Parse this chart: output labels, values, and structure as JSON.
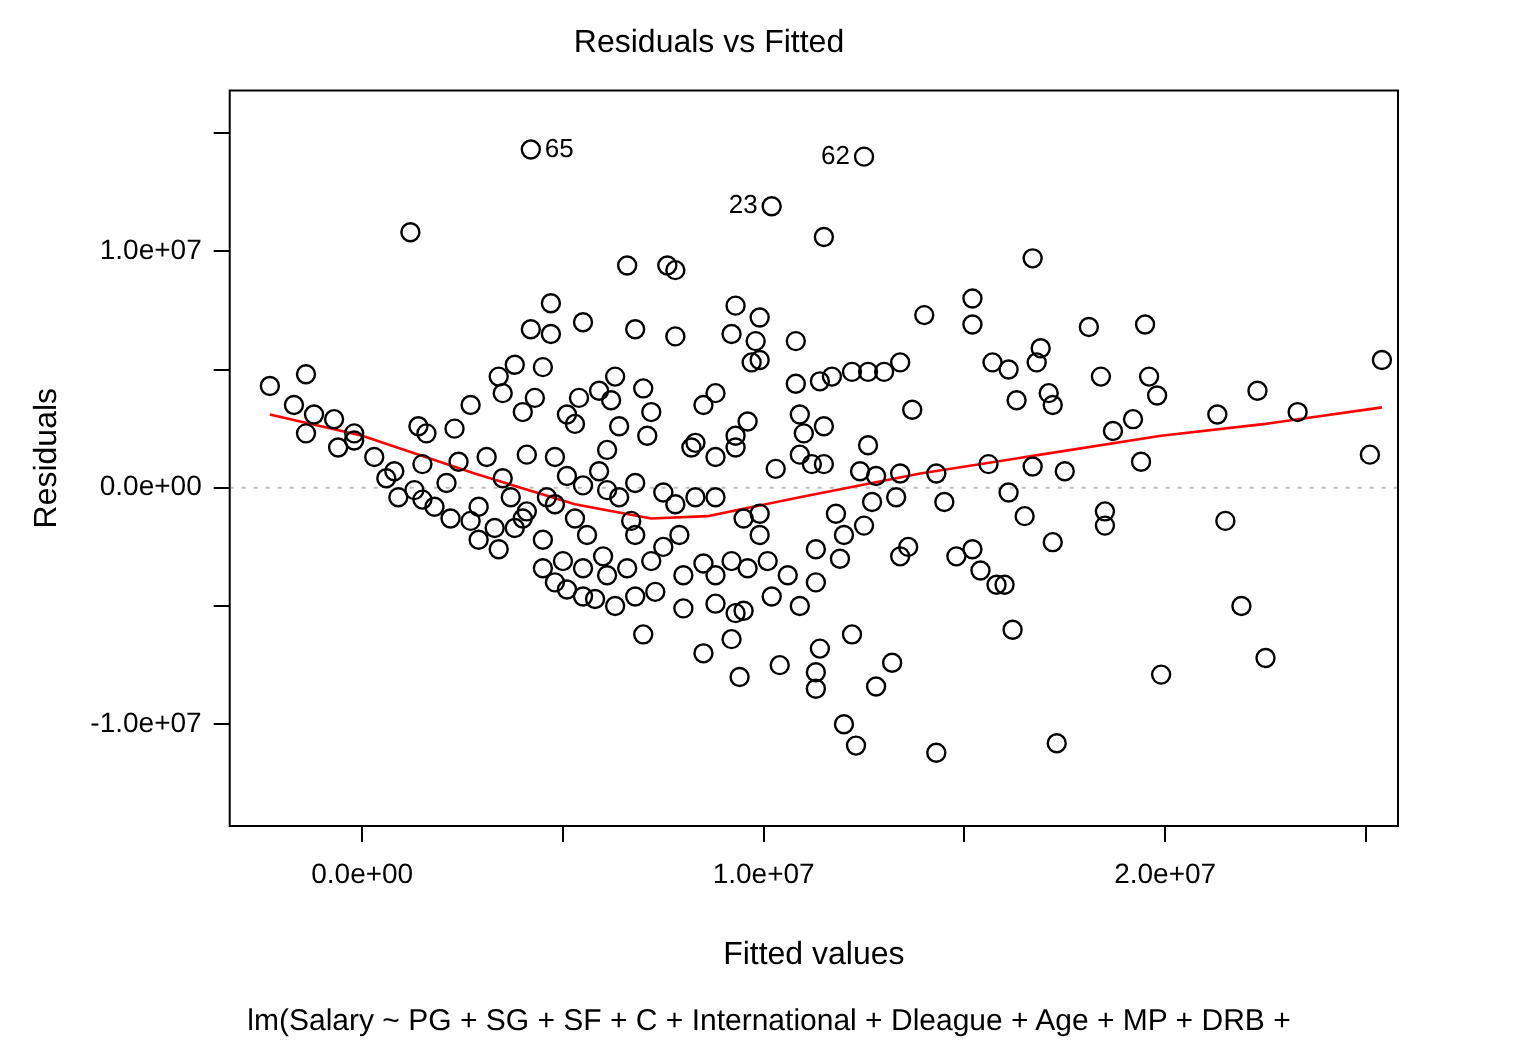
{
  "chart_data": {
    "type": "scatter",
    "title": "Residuals vs Fitted",
    "xlabel": "Fitted values",
    "ylabel": "Residuals",
    "annotations": [
      {
        "text": "65",
        "x": 4200000.0,
        "y": 14300000.0
      },
      {
        "text": "23",
        "x": 10200000.0,
        "y": 11900000.0
      },
      {
        "text": "62",
        "x": 12500000.0,
        "y": 14000000.0
      },
      "lm(Salary ~ PG + SG + SF + C + International + Dleague + Age + MP + DRB +"
    ],
    "xlim": [
      -3300000.0,
      25800000.0
    ],
    "ylim": [
      -14300000.0,
      16800000.0
    ],
    "xticks": [
      {
        "value": 0,
        "label": "0.0e+00"
      },
      {
        "value": 5000000.0,
        "label": null
      },
      {
        "value": 10000000.0,
        "label": "1.0e+07"
      },
      {
        "value": 15000000.0,
        "label": null
      },
      {
        "value": 20000000.0,
        "label": "2.0e+07"
      },
      {
        "value": 25000000.0,
        "label": null
      }
    ],
    "yticks": [
      {
        "value": -10000000.0,
        "label": "-1.0e+07"
      },
      {
        "value": -5000000.0,
        "label": null
      },
      {
        "value": 0,
        "label": "0.0e+00"
      },
      {
        "value": 5000000.0,
        "label": null
      },
      {
        "value": 10000000.0,
        "label": "1.0e+07"
      },
      {
        "value": 15000000.0,
        "label": null
      }
    ],
    "grid": false,
    "legend": false,
    "ref_lines": [
      {
        "axis": "y",
        "value": 0,
        "color": "#bebebe",
        "line_style": "dotted"
      }
    ],
    "series": [
      {
        "color": "#000000",
        "marker": "circle",
        "x": [
          4200000.0,
          10200000.0,
          12500000.0,
          1200000.0,
          6600000.0,
          7600000.0,
          7800000.0,
          4700000.0,
          4200000.0,
          4700000.0,
          5500000.0,
          6800000.0,
          7800000.0,
          9300000.0,
          9900000.0,
          9200000.0,
          9800000.0,
          9700000.0,
          9900000.0,
          10800000.0,
          -2300000.0,
          -1400000.0,
          -1700000.0,
          -1200000.0,
          -700000.0,
          -200000.0,
          3800000.0,
          3400000.0,
          4500000.0,
          3500000.0,
          4300000.0,
          4000000.0,
          2700000.0,
          2300000.0,
          1400000.0,
          1600000.0,
          5400000.0,
          5900000.0,
          6300000.0,
          7000000.0,
          6200000.0,
          7200000.0,
          5100000.0,
          5300000.0,
          6400000.0,
          7100000.0,
          8800000.0,
          8500000.0,
          9600000.0,
          9300000.0,
          8300000.0,
          10800000.0,
          10900000.0,
          11000000.0,
          11500000.0,
          16700000.0,
          14000000.0,
          15200000.0,
          15200000.0,
          18100000.0,
          19500000.0,
          11400000.0,
          11700000.0,
          12200000.0,
          12600000.0,
          13000000.0,
          13400000.0,
          15700000.0,
          16100000.0,
          16800000.0,
          16900000.0,
          18400000.0,
          19600000.0,
          19800000.0,
          17100000.0,
          17200000.0,
          16300000.0,
          13700000.0,
          11500000.0,
          12600000.0,
          18700000.0,
          19200000.0,
          21300000.0,
          22300000.0,
          23300000.0,
          25400000.0,
          25100000.0,
          12400000.0,
          11200000.0,
          11500000.0,
          12800000.0,
          13400000.0,
          14300000.0,
          15600000.0,
          16700000.0,
          17500000.0,
          19400000.0,
          14500000.0,
          13300000.0,
          12700000.0,
          16100000.0,
          16500000.0,
          18500000.0,
          18500000.0,
          21500000.0,
          11800000.0,
          12000000.0,
          12500000.0,
          11300000.0,
          11900000.0,
          13400000.0,
          13600000.0,
          14800000.0,
          15200000.0,
          15400000.0,
          17200000.0,
          15800000.0,
          16000000.0,
          11300000.0,
          10900000.0,
          16200000.0,
          21900000.0,
          12200000.0,
          11400000.0,
          11300000.0,
          11300000.0,
          13200000.0,
          12800000.0,
          22500000.0,
          19900000.0,
          12000000.0,
          12300000.0,
          14300000.0,
          17300000.0,
          -1400000.0,
          -600000.0,
          -200000.0,
          300000.0,
          600000.0,
          800000.0,
          1300000.0,
          1500000.0,
          1800000.0,
          2200000.0,
          1500000.0,
          2400000.0,
          3100000.0,
          2700000.0,
          2900000.0,
          3400000.0,
          3800000.0,
          4100000.0,
          3700000.0,
          3500000.0,
          4100000.0,
          4800000.0,
          5100000.0,
          4600000.0,
          4500000.0,
          4500000.0,
          5000000.0,
          4800000.0,
          5100000.0,
          5500000.0,
          5800000.0,
          5500000.0,
          6000000.0,
          6300000.0,
          6100000.0,
          6600000.0,
          6800000.0,
          7000000.0,
          7300000.0,
          7200000.0,
          7500000.0,
          6800000.0,
          6700000.0,
          6400000.0,
          6800000.0,
          5900000.0,
          6100000.0,
          5500000.0,
          5300000.0,
          5600000.0,
          7800000.0,
          8300000.0,
          8800000.0,
          7900000.0,
          8000000.0,
          8000000.0,
          8500000.0,
          8800000.0,
          9200000.0,
          9600000.0,
          10100000.0,
          10600000.0,
          8800000.0,
          9300000.0,
          9500000.0,
          9200000.0,
          8500000.0,
          9400000.0,
          10400000.0,
          10200000.0,
          9900000.0,
          9500000.0,
          9900000.0,
          10300000.0,
          8200000.0,
          8800000.0,
          9300000.0,
          10900000.0,
          7500000.0,
          6100000.0,
          4800000.0,
          4000000.0,
          3300000.0,
          2900000.0,
          2100000.0,
          900000.0
        ],
        "values": [
          14300000.0,
          11900000.0,
          14000000.0,
          10800000.0,
          9400000.0,
          9400000.0,
          9200000.0,
          7800000.0,
          6700000.0,
          6500000.0,
          7000000.0,
          6700000.0,
          6400000.0,
          7700000.0,
          7200000.0,
          6500000.0,
          6200000.0,
          5300000.0,
          5400000.0,
          6200000.0,
          4300000.0,
          4800000.0,
          3500000.0,
          3100000.0,
          2900000.0,
          2300000.0,
          5200000.0,
          4700000.0,
          5100000.0,
          4000000.0,
          3800000.0,
          3200000.0,
          3500000.0,
          2500000.0,
          2600000.0,
          2300000.0,
          3800000.0,
          4100000.0,
          4700000.0,
          4200000.0,
          3700000.0,
          3200000.0,
          3100000.0,
          2700000.0,
          2600000.0,
          2200000.0,
          4000000.0,
          3500000.0,
          2800000.0,
          2200000.0,
          1900000.0,
          4400000.0,
          3100000.0,
          2300000.0,
          10600000.0,
          9700000.0,
          7300000.0,
          8000000.0,
          6900000.0,
          6800000.0,
          6900000.0,
          4500000.0,
          4700000.0,
          4900000.0,
          4900000.0,
          4900000.0,
          5300000.0,
          5300000.0,
          5000000.0,
          5300000.0,
          5900000.0,
          4700000.0,
          4700000.0,
          3900000.0,
          4000000.0,
          3500000.0,
          3700000.0,
          3300000.0,
          2600000.0,
          1800000.0,
          2400000.0,
          2900000.0,
          3100000.0,
          4100000.0,
          3200000.0,
          5400000.0,
          1400000.0,
          700000.0,
          1000000.0,
          1000000.0,
          500000.0,
          600000.0,
          600000.0,
          1000000.0,
          900000.0,
          700000.0,
          1100000.0,
          -600000.0,
          -400000.0,
          -600000.0,
          -200000.0,
          -1200000.0,
          -1000000.0,
          -1600000.0,
          -1400000.0,
          -1100000.0,
          -2000000.0,
          -1600000.0,
          -2600000.0,
          -3000000.0,
          -2900000.0,
          -2500000.0,
          -2900000.0,
          -2600000.0,
          -3500000.0,
          -2300000.0,
          -4100000.0,
          -4100000.0,
          -4000000.0,
          -5000000.0,
          -6000000.0,
          -5000000.0,
          -6200000.0,
          -6800000.0,
          -7800000.0,
          -8500000.0,
          -7400000.0,
          -8400000.0,
          -7200000.0,
          -7900000.0,
          -10000000.0,
          -10900000.0,
          -11200000.0,
          -10800000.0,
          2300000.0,
          1700000.0,
          2000000.0,
          1300000.0,
          400000.0,
          700000.0,
          -100000.0,
          -500000.0,
          -800000.0,
          -1300000.0,
          1000000.0,
          1100000.0,
          1300000.0,
          -1400000.0,
          -2200000.0,
          -2600000.0,
          -1700000.0,
          -1000000.0,
          -400000.0,
          400000.0,
          1400000.0,
          1300000.0,
          500000.0,
          -400000.0,
          -2200000.0,
          -3400000.0,
          -3100000.0,
          -4000000.0,
          -4300000.0,
          -4600000.0,
          -4700000.0,
          -3400000.0,
          -2900000.0,
          -5000000.0,
          -3700000.0,
          -3400000.0,
          -4600000.0,
          -6200000.0,
          -4400000.0,
          -3100000.0,
          -2500000.0,
          -2000000.0,
          -1400000.0,
          -400000.0,
          200000.0,
          700000.0,
          1600000.0,
          100000.0,
          -1300000.0,
          -2000000.0,
          -700000.0,
          -400000.0,
          -400000.0,
          -2000000.0,
          -3700000.0,
          -5100000.0,
          -3200000.0,
          -3700000.0,
          -3100000.0,
          -3400000.0,
          -3100000.0,
          -3700000.0,
          -4900000.0,
          -5300000.0,
          -5200000.0,
          -6400000.0,
          -7000000.0,
          -8000000.0,
          -7500000.0,
          -4600000.0,
          -1100000.0,
          -1300000.0,
          -2000000.0,
          800000.0,
          1700000.0,
          1300000.0,
          1700000.0,
          1400000.0,
          -200000.0,
          -100000.0,
          -700000.0,
          -1300000.0,
          -1700000.0,
          -800000.0,
          200000.0,
          -400000.0
        ]
      },
      {
        "type": "line",
        "color": "#ff0000",
        "line_style": "solid",
        "marker": "none",
        "x": [
          -2300000.0,
          0,
          2800000.0,
          5300000.0,
          7200000.0,
          8600000.0,
          10900000.0,
          13900000.0,
          16900000.0,
          19900000.0,
          22500000.0,
          25400000.0
        ],
        "values": [
          3100000.0,
          2200000.0,
          600000.0,
          -700000.0,
          -1300000.0,
          -1200000.0,
          -400000.0,
          600000.0,
          1400000.0,
          2200000.0,
          2700000.0,
          3400000.0
        ]
      }
    ]
  }
}
